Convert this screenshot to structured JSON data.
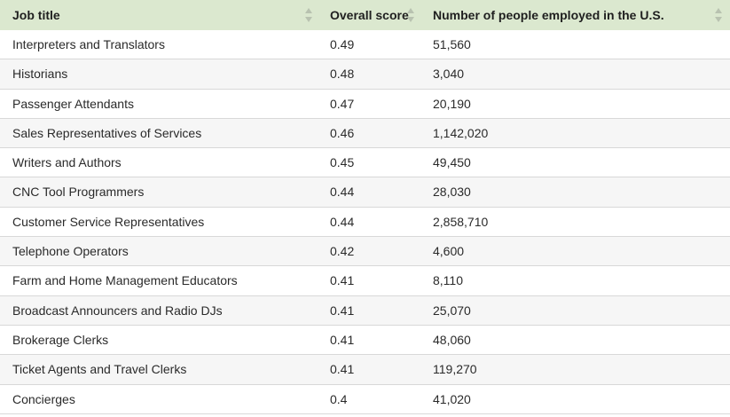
{
  "table": {
    "headers": {
      "job_title": "Job title",
      "overall_score": "Overall score",
      "employed": "Number of people employed in the U.S."
    },
    "rows": [
      {
        "job_title": "Interpreters and Translators",
        "score": "0.49",
        "employed": "51,560"
      },
      {
        "job_title": "Historians",
        "score": "0.48",
        "employed": "3,040"
      },
      {
        "job_title": "Passenger Attendants",
        "score": "0.47",
        "employed": "20,190"
      },
      {
        "job_title": "Sales Representatives of Services",
        "score": "0.46",
        "employed": "1,142,020"
      },
      {
        "job_title": "Writers and Authors",
        "score": "0.45",
        "employed": "49,450"
      },
      {
        "job_title": "CNC Tool Programmers",
        "score": "0.44",
        "employed": "28,030"
      },
      {
        "job_title": "Customer Service Representatives",
        "score": "0.44",
        "employed": "2,858,710"
      },
      {
        "job_title": "Telephone Operators",
        "score": "0.42",
        "employed": "4,600"
      },
      {
        "job_title": "Farm and Home Management Educators",
        "score": "0.41",
        "employed": "8,110"
      },
      {
        "job_title": "Broadcast Announcers and Radio DJs",
        "score": "0.41",
        "employed": "25,070"
      },
      {
        "job_title": "Brokerage Clerks",
        "score": "0.41",
        "employed": "48,060"
      },
      {
        "job_title": "Ticket Agents and Travel Clerks",
        "score": "0.41",
        "employed": "119,270"
      },
      {
        "job_title": "Concierges",
        "score": "0.4",
        "employed": "41,020"
      }
    ]
  },
  "colors": {
    "header_bg": "#dbe8cf",
    "sort_arrow": "#b8c2b0",
    "row_alt_bg": "#f6f6f6",
    "row_border": "#d8d8d8"
  },
  "icons": {
    "sort": "sort-arrows-icon"
  }
}
